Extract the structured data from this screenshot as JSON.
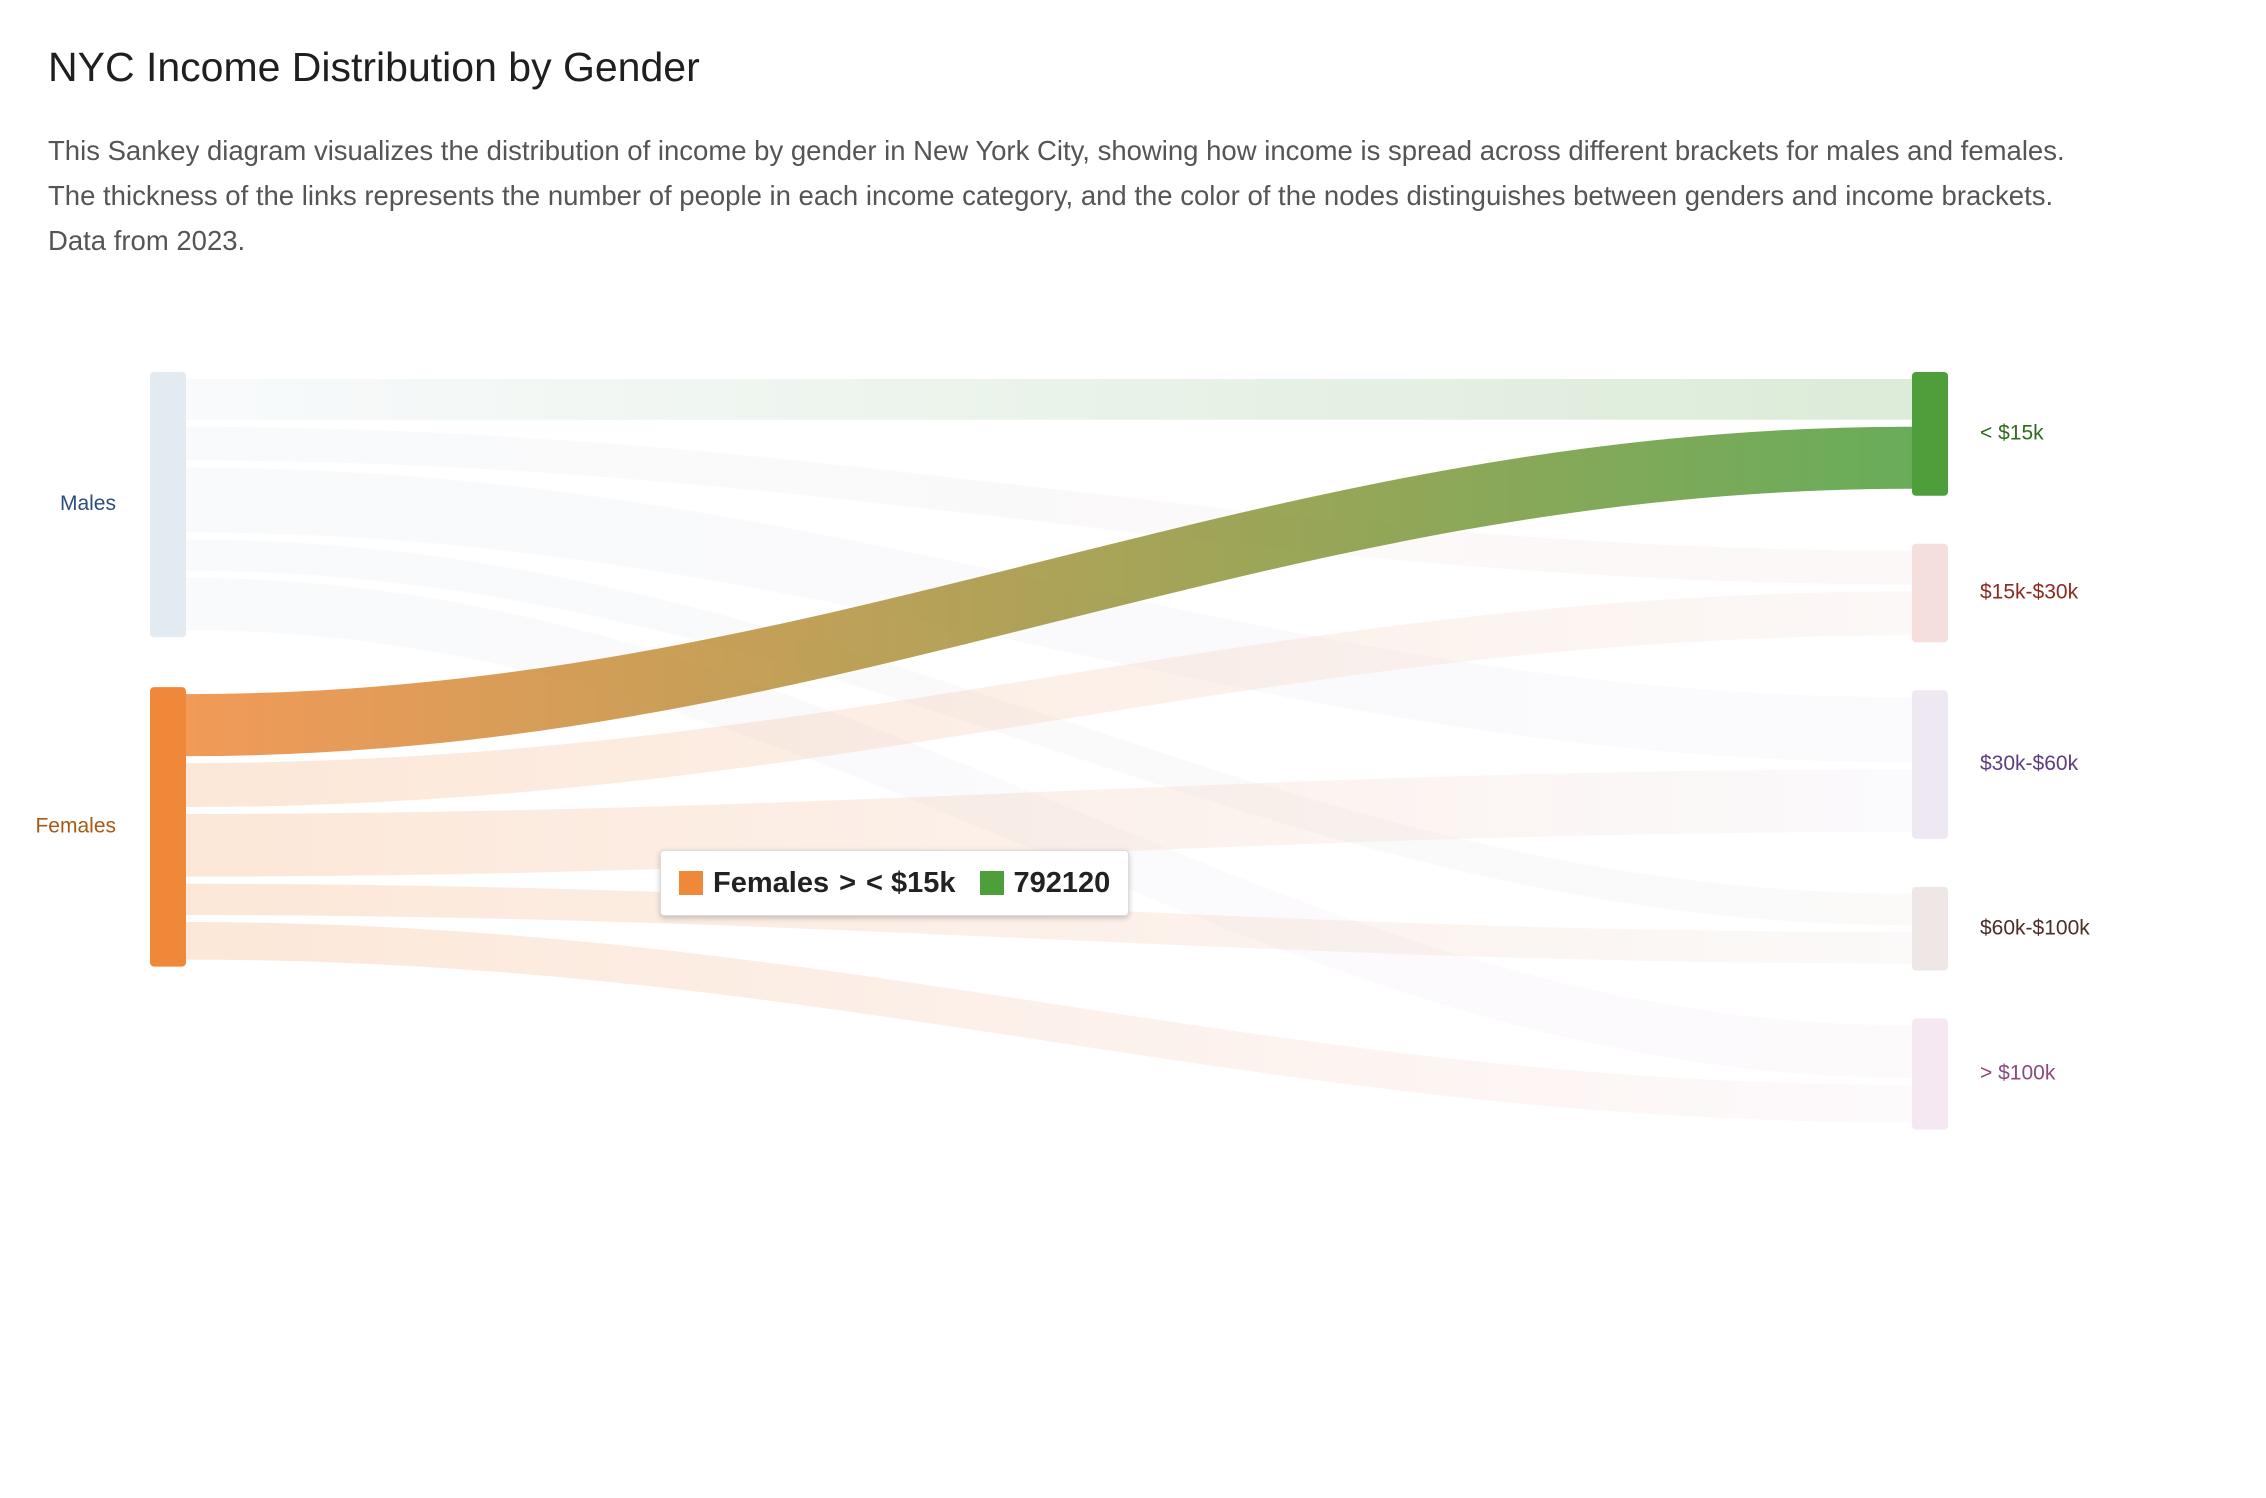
{
  "page": {
    "title": "NYC Income Distribution by Gender",
    "description_lines": [
      "This Sankey diagram visualizes the distribution of income by gender in New York City, showing how income is spread across different brackets for males and females.",
      "The thickness of the links represents the number of people in each income category, and the color of the nodes distinguishes between genders and income brackets.",
      "Data from 2023."
    ]
  },
  "tooltip": {
    "source_label": "Females",
    "separator": ">",
    "target_label": "< $15k",
    "value": "792120",
    "source_color": "#f0883a",
    "target_color": "#4e9e3c"
  },
  "chart_data": {
    "type": "sankey",
    "nodes": [
      {
        "id": "males",
        "label": "Males",
        "color": "#dfe8f1",
        "label_color": "#2d4e7a"
      },
      {
        "id": "females",
        "label": "Females",
        "color": "#f0883a",
        "label_color": "#a85a14"
      },
      {
        "id": "lt15",
        "label": "< $15k",
        "color": "#4e9e3c",
        "label_color": "#2e6b1f"
      },
      {
        "id": "15_30",
        "label": "$15k-$30k",
        "color": "#f3dcd8",
        "label_color": "#8c2a22"
      },
      {
        "id": "30_60",
        "label": "$30k-$60k",
        "color": "#ece6f2",
        "label_color": "#5e3e7e"
      },
      {
        "id": "60_100",
        "label": "$60k-$100k",
        "color": "#ece4e2",
        "label_color": "#4a2e28"
      },
      {
        "id": "gt100",
        "label": "> $100k",
        "color": "#f5e6f2",
        "label_color": "#8a4a80"
      }
    ],
    "links": [
      {
        "source": "males",
        "target": "lt15",
        "value": 520000
      },
      {
        "source": "males",
        "target": "15_30",
        "value": 430000
      },
      {
        "source": "males",
        "target": "30_60",
        "value": 830000
      },
      {
        "source": "males",
        "target": "60_100",
        "value": 400000
      },
      {
        "source": "males",
        "target": "gt100",
        "value": 670000
      },
      {
        "source": "females",
        "target": "lt15",
        "value": 792120
      },
      {
        "source": "females",
        "target": "15_30",
        "value": 560000
      },
      {
        "source": "females",
        "target": "30_60",
        "value": 800000
      },
      {
        "source": "females",
        "target": "60_100",
        "value": 400000
      },
      {
        "source": "females",
        "target": "gt100",
        "value": 480000
      }
    ],
    "highlighted_link": {
      "source": "females",
      "target": "lt15"
    }
  }
}
